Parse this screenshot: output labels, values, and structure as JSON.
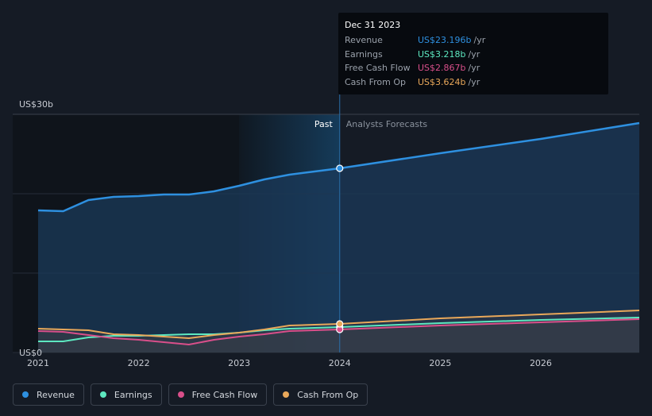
{
  "colors": {
    "revenue": "#2e90e0",
    "earnings": "#5de8c0",
    "free_cash_flow": "#d94f8a",
    "cash_from_op": "#e9a85a",
    "background": "#151b25"
  },
  "tooltip": {
    "date": "Dec 31 2023",
    "rows": [
      {
        "label": "Revenue",
        "value": "US$23.196b",
        "unit": "/yr"
      },
      {
        "label": "Earnings",
        "value": "US$3.218b",
        "unit": "/yr"
      },
      {
        "label": "Free Cash Flow",
        "value": "US$2.867b",
        "unit": "/yr"
      },
      {
        "label": "Cash From Op",
        "value": "US$3.624b",
        "unit": "/yr"
      }
    ]
  },
  "regions": {
    "past_label": "Past",
    "forecast_label": "Analysts Forecasts"
  },
  "legend": [
    {
      "name": "Revenue",
      "color": "#2e90e0"
    },
    {
      "name": "Earnings",
      "color": "#5de8c0"
    },
    {
      "name": "Free Cash Flow",
      "color": "#d94f8a"
    },
    {
      "name": "Cash From Op",
      "color": "#e9a85a"
    }
  ],
  "chart_data": {
    "type": "line",
    "title": "",
    "xlabel": "",
    "ylabel": "",
    "y_ticks": [
      {
        "value": 30,
        "label": "US$30b"
      },
      {
        "value": 0,
        "label": "US$0"
      }
    ],
    "ylim": [
      0,
      30
    ],
    "xlim": [
      2021.0,
      2026.98
    ],
    "x_ticks": [
      2021,
      2022,
      2023,
      2024,
      2025,
      2026
    ],
    "past_end": 2024.0,
    "highlight_x": 2024.0,
    "series": [
      {
        "name": "Revenue",
        "color": "#2e90e0",
        "points": [
          [
            2021.0,
            17.9
          ],
          [
            2021.25,
            17.8
          ],
          [
            2021.5,
            19.2
          ],
          [
            2021.75,
            19.6
          ],
          [
            2022.0,
            19.7
          ],
          [
            2022.25,
            19.9
          ],
          [
            2022.5,
            19.9
          ],
          [
            2022.75,
            20.3
          ],
          [
            2023.0,
            21.0
          ],
          [
            2023.25,
            21.8
          ],
          [
            2023.5,
            22.4
          ],
          [
            2023.75,
            22.8
          ],
          [
            2024.0,
            23.2
          ],
          [
            2025.0,
            25.1
          ],
          [
            2026.0,
            26.9
          ],
          [
            2026.98,
            28.9
          ]
        ]
      },
      {
        "name": "Earnings",
        "color": "#5de8c0",
        "points": [
          [
            2021.0,
            1.4
          ],
          [
            2021.25,
            1.4
          ],
          [
            2021.5,
            1.9
          ],
          [
            2021.75,
            2.1
          ],
          [
            2022.0,
            2.1
          ],
          [
            2022.25,
            2.2
          ],
          [
            2022.5,
            2.3
          ],
          [
            2022.75,
            2.3
          ],
          [
            2023.0,
            2.5
          ],
          [
            2023.25,
            2.8
          ],
          [
            2023.5,
            3.0
          ],
          [
            2023.75,
            3.1
          ],
          [
            2024.0,
            3.2
          ],
          [
            2025.0,
            3.7
          ],
          [
            2026.0,
            4.1
          ],
          [
            2026.98,
            4.4
          ]
        ]
      },
      {
        "name": "Free Cash Flow",
        "color": "#d94f8a",
        "points": [
          [
            2021.0,
            2.7
          ],
          [
            2021.25,
            2.6
          ],
          [
            2021.5,
            2.2
          ],
          [
            2021.75,
            1.8
          ],
          [
            2022.0,
            1.6
          ],
          [
            2022.25,
            1.3
          ],
          [
            2022.5,
            1.0
          ],
          [
            2022.75,
            1.6
          ],
          [
            2023.0,
            2.0
          ],
          [
            2023.25,
            2.3
          ],
          [
            2023.5,
            2.7
          ],
          [
            2023.75,
            2.8
          ],
          [
            2024.0,
            2.9
          ],
          [
            2025.0,
            3.4
          ],
          [
            2026.0,
            3.8
          ],
          [
            2026.98,
            4.2
          ]
        ]
      },
      {
        "name": "Cash From Op",
        "color": "#e9a85a",
        "points": [
          [
            2021.0,
            3.0
          ],
          [
            2021.25,
            2.9
          ],
          [
            2021.5,
            2.8
          ],
          [
            2021.75,
            2.3
          ],
          [
            2022.0,
            2.2
          ],
          [
            2022.25,
            2.0
          ],
          [
            2022.5,
            1.8
          ],
          [
            2022.75,
            2.2
          ],
          [
            2023.0,
            2.5
          ],
          [
            2023.25,
            2.9
          ],
          [
            2023.5,
            3.4
          ],
          [
            2023.75,
            3.5
          ],
          [
            2024.0,
            3.6
          ],
          [
            2025.0,
            4.3
          ],
          [
            2026.0,
            4.8
          ],
          [
            2026.98,
            5.3
          ]
        ]
      }
    ]
  }
}
